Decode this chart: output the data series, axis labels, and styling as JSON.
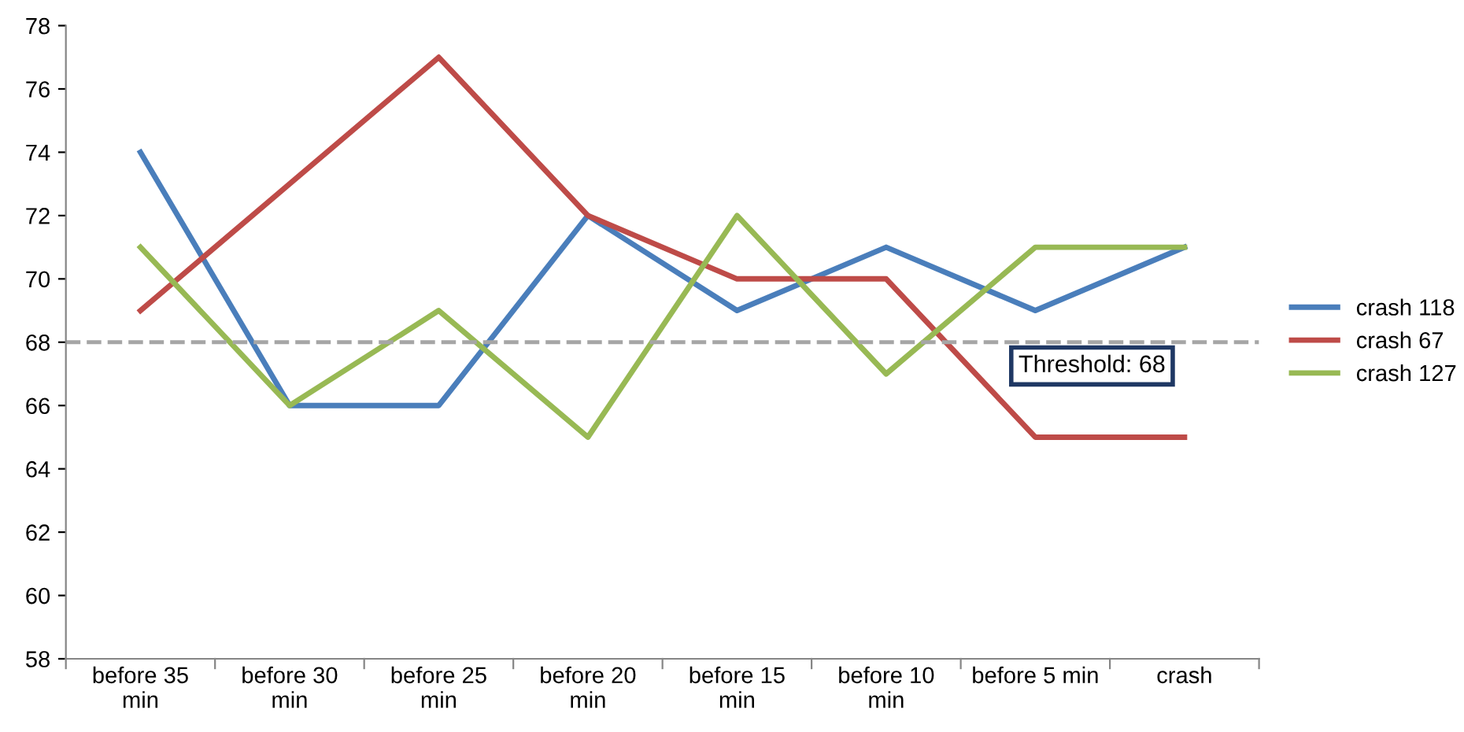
{
  "chart_data": {
    "type": "line",
    "categories": [
      "before 35\nmin",
      "before 30\nmin",
      "before 25\nmin",
      "before 20\nmin",
      "before 15\nmin",
      "before 10\nmin",
      "before 5 min",
      "crash"
    ],
    "series": [
      {
        "name": "crash 118",
        "color": "#4a7ebb",
        "values": [
          74,
          66,
          66,
          72,
          69,
          71,
          69,
          71
        ]
      },
      {
        "name": "crash 67",
        "color": "#be4b48",
        "values": [
          69,
          73,
          77,
          72,
          70,
          70,
          65,
          65
        ]
      },
      {
        "name": "crash 127",
        "color": "#98b954",
        "values": [
          71,
          66,
          69,
          65,
          72,
          67,
          71,
          71
        ]
      }
    ],
    "ylim": [
      58,
      78
    ],
    "yticks": [
      58,
      60,
      62,
      64,
      66,
      68,
      70,
      72,
      74,
      76,
      78
    ],
    "ref_lines": [
      {
        "axis": "y",
        "value": 68,
        "label": "Threshold: 68",
        "color": "#a6a6a6",
        "line_style": "dashed"
      }
    ],
    "grid": false,
    "legend": "right",
    "marker": "none",
    "line_style": "solid"
  }
}
